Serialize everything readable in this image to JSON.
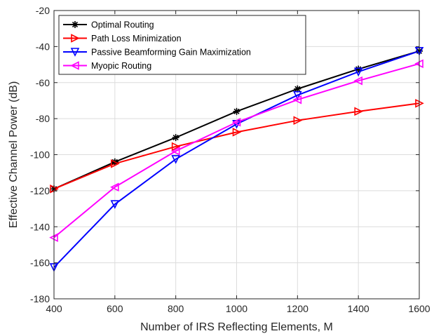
{
  "chart_data": {
    "type": "line",
    "xlabel": "Number of IRS Reflecting Elements, M",
    "ylabel": "Effective Channel Power (dB)",
    "xlim": [
      400,
      1600
    ],
    "ylim": [
      -180,
      -20
    ],
    "xticks": [
      400,
      600,
      800,
      1000,
      1200,
      1400,
      1600
    ],
    "yticks": [
      -180,
      -160,
      -140,
      -120,
      -100,
      -80,
      -60,
      -40,
      -20
    ],
    "grid": true,
    "legend_position": "top-left",
    "x": [
      400,
      600,
      800,
      1000,
      1200,
      1400,
      1600
    ],
    "series": [
      {
        "name": "Optimal Routing",
        "color": "#000000",
        "marker": "asterisk",
        "values": [
          -119,
          -104,
          -90.5,
          -76,
          -63.5,
          -52.5,
          -42.5
        ]
      },
      {
        "name": "Path Loss Minimization",
        "color": "#ff0000",
        "marker": "triangle-right",
        "values": [
          -119,
          -105,
          -95.5,
          -87.5,
          -81,
          -76,
          -71.5
        ]
      },
      {
        "name": "Passive Beamforming Gain Maximization",
        "color": "#0000ff",
        "marker": "triangle-down",
        "values": [
          -162.5,
          -127.5,
          -102.5,
          -83,
          -67,
          -54,
          -42.5
        ]
      },
      {
        "name": "Myopic Routing",
        "color": "#ff00ff",
        "marker": "triangle-left",
        "values": [
          -146,
          -118,
          -98,
          -82,
          -69.5,
          -59,
          -49.5
        ]
      }
    ]
  }
}
